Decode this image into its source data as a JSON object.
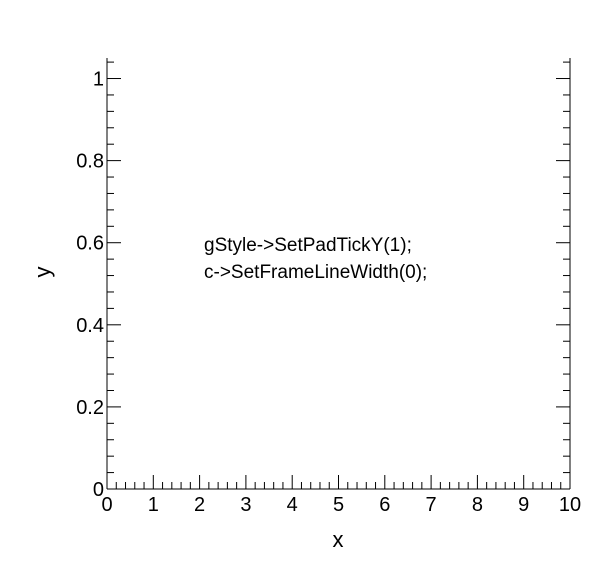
{
  "chart_data": {
    "type": "scatter",
    "title": "",
    "xlabel": "x",
    "ylabel": "y",
    "xlim": [
      0,
      10
    ],
    "ylim": [
      0,
      1.05
    ],
    "x_ticks": [
      0,
      1,
      2,
      3,
      4,
      5,
      6,
      7,
      8,
      9,
      10
    ],
    "x_tick_labels": [
      "0",
      "1",
      "2",
      "3",
      "4",
      "5",
      "6",
      "7",
      "8",
      "9",
      "10"
    ],
    "y_ticks": [
      0,
      0.2,
      0.4,
      0.6,
      0.8,
      1
    ],
    "y_tick_labels": [
      "0",
      "0.2",
      "0.4",
      "0.6",
      "0.8",
      "1"
    ],
    "grid": false,
    "pad_tick_y": true,
    "series": [],
    "annotations": [
      "gStyle->SetPadTickY(1);",
      "c->SetFrameLineWidth(0);"
    ]
  },
  "colors": {
    "axis": "#000000",
    "background": "#ffffff"
  }
}
